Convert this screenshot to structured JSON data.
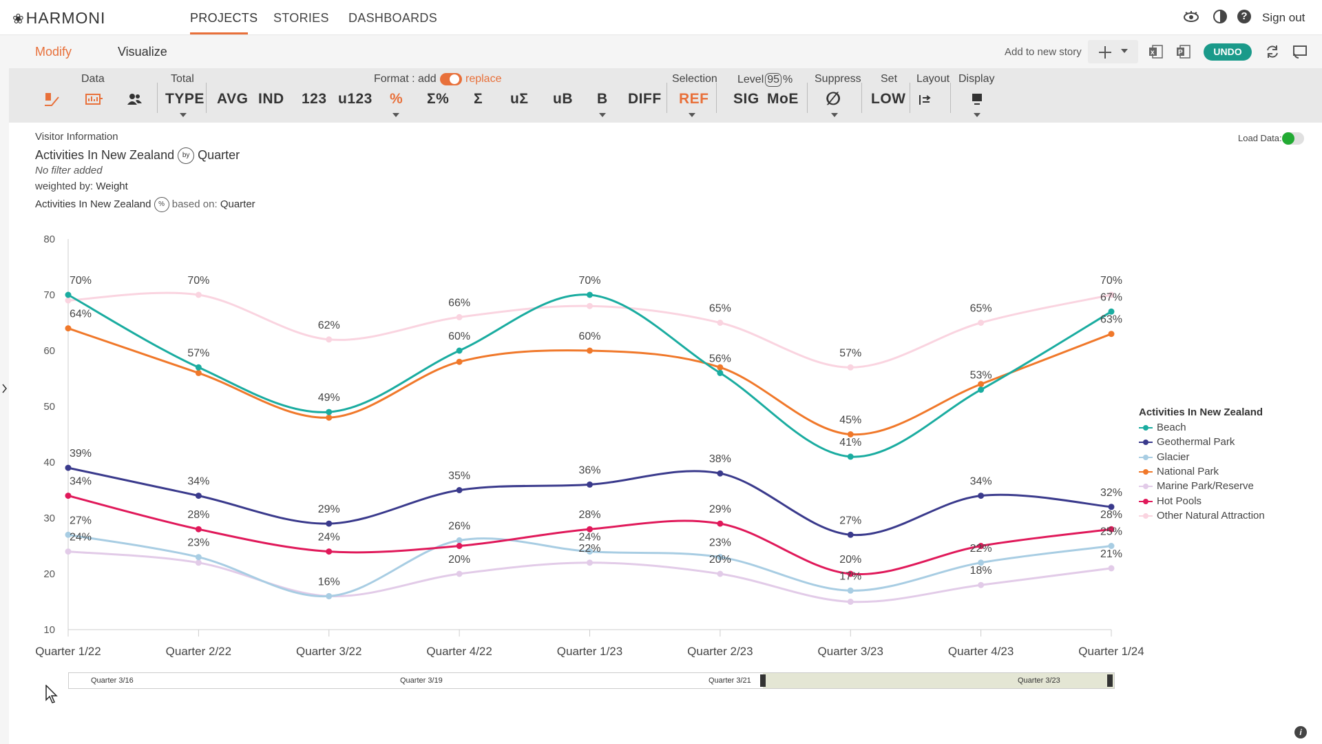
{
  "app": {
    "logo_text": "HARMONI"
  },
  "nav": {
    "tabs": [
      "PROJECTS",
      "STORIES",
      "DASHBOARDS"
    ],
    "sign_out": "Sign out"
  },
  "modes": {
    "modify": "Modify",
    "visualize": "Visualize"
  },
  "actions": {
    "add_to_story": "Add to new story",
    "undo": "UNDO"
  },
  "toolbar": {
    "labels": {
      "data": "Data",
      "total": "Total",
      "format": "Format : add",
      "format_replace": "replace",
      "selection": "Selection",
      "level": "Level",
      "level_value": "95",
      "level_unit": "%",
      "suppress": "Suppress",
      "set": "Set",
      "layout": "Layout",
      "display": "Display"
    },
    "buttons": {
      "type": "TYPE",
      "avg": "AVG",
      "ind": "IND",
      "n123": "123",
      "u123": "u123",
      "pct": "%",
      "sum_pct": "Σ%",
      "sum": "Σ",
      "usum": "uΣ",
      "ub": "uB",
      "b": "B",
      "diff": "DIFF",
      "ref": "REF",
      "sig": "SIG",
      "moe": "MoE",
      "empty": "∅",
      "low": "LOW"
    }
  },
  "info": {
    "source": "Visitor Information",
    "title_left": "Activities In New Zealand",
    "title_by": "by",
    "title_right": "Quarter",
    "filter": "No filter added",
    "weighted_label": "weighted by:",
    "weighted_value": "Weight",
    "pct_left": "Activities In New Zealand",
    "pct_symbol": "%",
    "based_label": "based on:",
    "based_value": "Quarter",
    "load_data": "Load Data:"
  },
  "colors": {
    "accent": "#e8703a",
    "undo": "#1a9a8a",
    "load_on": "#22aa33"
  },
  "chart_data": {
    "type": "line",
    "categories": [
      "Quarter 1/22",
      "Quarter 2/22",
      "Quarter 3/22",
      "Quarter 4/22",
      "Quarter 1/23",
      "Quarter 2/23",
      "Quarter 3/23",
      "Quarter 4/23",
      "Quarter 1/24"
    ],
    "ylim": [
      10,
      80
    ],
    "yticks": [
      "10",
      "20",
      "30",
      "40",
      "50",
      "60",
      "70",
      "80"
    ],
    "legend_title": "Activities In New Zealand",
    "legend_position": "right",
    "series": [
      {
        "name": "Beach",
        "color": "#1aaca0",
        "values": [
          70,
          57,
          49,
          60,
          70,
          56,
          41,
          53,
          67
        ],
        "labels": [
          "70%",
          "57%",
          "49%",
          "60%",
          "70%",
          "56%",
          "41%",
          "53%",
          "67%"
        ]
      },
      {
        "name": "Geothermal Park",
        "color": "#3a3a8c",
        "values": [
          39,
          34,
          29,
          35,
          36,
          38,
          27,
          34,
          32
        ],
        "labels": [
          "39%",
          "34%",
          "29%",
          "35%",
          "36%",
          "38%",
          "27%",
          "34%",
          "32%"
        ]
      },
      {
        "name": "Glacier",
        "color": "#a8cde3",
        "values": [
          27,
          23,
          16,
          26,
          24,
          23,
          17,
          22,
          25
        ],
        "labels": [
          "27%",
          "23%",
          "16%",
          "26%",
          "24%",
          "23%",
          "17%",
          "22%",
          "25%"
        ]
      },
      {
        "name": "National Park",
        "color": "#f0782a",
        "values": [
          64,
          56,
          48,
          58,
          60,
          57,
          45,
          54,
          63
        ],
        "labels": [
          "64%",
          "",
          "",
          "",
          "60%",
          "",
          "45%",
          "",
          "63%"
        ]
      },
      {
        "name": "Marine Park/Reserve",
        "color": "#e2cbe8",
        "values": [
          24,
          22,
          16,
          20,
          22,
          20,
          15,
          18,
          21
        ],
        "labels": [
          "24%",
          "",
          "",
          "20%",
          "22%",
          "20%",
          "",
          "18%",
          "21%"
        ]
      },
      {
        "name": "Hot Pools",
        "color": "#e0195a",
        "values": [
          34,
          28,
          24,
          25,
          28,
          29,
          20,
          25,
          28
        ],
        "labels": [
          "34%",
          "28%",
          "24%",
          "",
          "28%",
          "29%",
          "20%",
          "",
          "28%"
        ]
      },
      {
        "name": "Other Natural Attraction",
        "color": "#fad4e0",
        "values": [
          69,
          70,
          62,
          66,
          68,
          65,
          57,
          65,
          70
        ],
        "labels": [
          "",
          "70%",
          "62%",
          "66%",
          "",
          "65%",
          "57%",
          "65%",
          "70%"
        ]
      }
    ]
  },
  "range_slider": {
    "labels": [
      "Quarter 3/16",
      "Quarter 3/19",
      "Quarter 3/21",
      "Quarter 3/23"
    ],
    "selected_from": "Quarter 1/22",
    "selected_to": "Quarter 1/24"
  }
}
